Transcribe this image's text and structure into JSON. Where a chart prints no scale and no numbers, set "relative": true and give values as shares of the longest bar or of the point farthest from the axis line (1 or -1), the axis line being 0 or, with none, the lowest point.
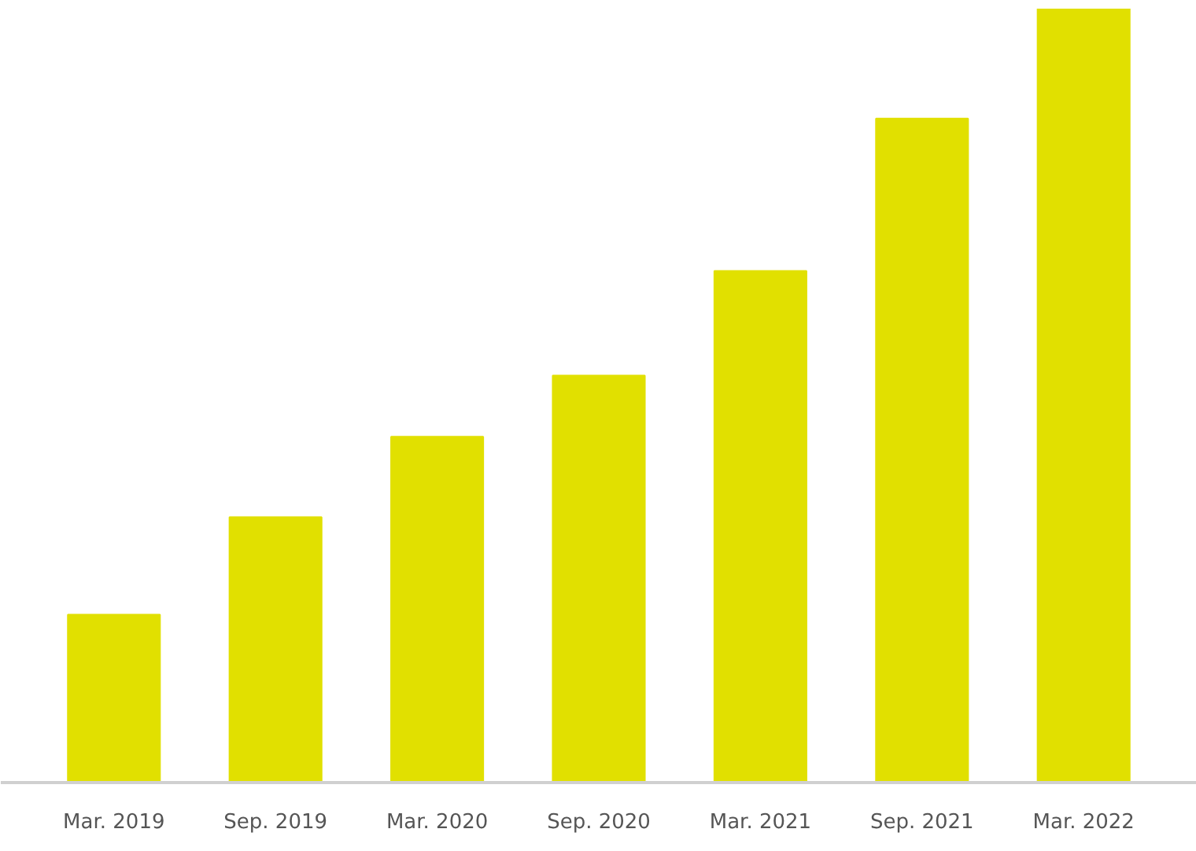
{
  "chart_data": {
    "type": "bar",
    "relative": true,
    "categories": [
      "Mar. 2019",
      "Sep. 2019",
      "Mar. 2020",
      "Sep. 2020",
      "Mar. 2021",
      "Sep. 2021",
      "Mar. 2022"
    ],
    "values": [
      0.217,
      0.343,
      0.447,
      0.526,
      0.661,
      0.858,
      1
    ],
    "color": "#e1e000",
    "grid": false
  }
}
